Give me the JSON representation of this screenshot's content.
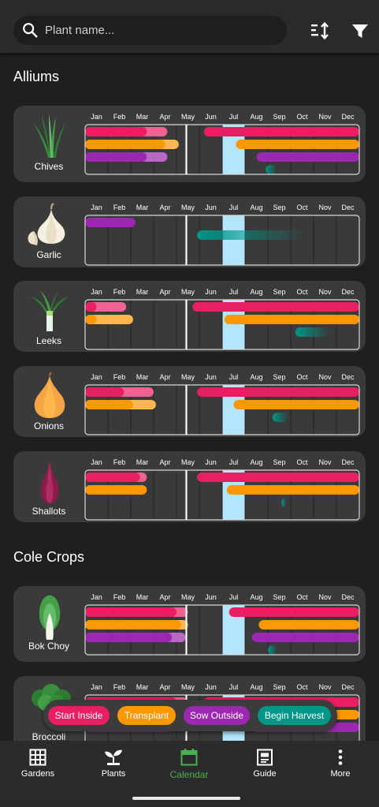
{
  "search": {
    "placeholder": "Plant name...",
    "icon": "search-icon"
  },
  "toolbar": {
    "sort_icon": "sort-icon",
    "filter_icon": "filter-icon"
  },
  "months": [
    "Jan",
    "Feb",
    "Mar",
    "Apr",
    "May",
    "Jun",
    "Jul",
    "Aug",
    "Sep",
    "Oct",
    "Nov",
    "Dec"
  ],
  "colors": {
    "start_inside": "#e91e63",
    "start_inside_light": "#f06292",
    "transplant": "#ff9800",
    "transplant_light": "#ffb74d",
    "sow_outside": "#9c27b0",
    "sow_outside_light": "#ba68c8",
    "harvest": "#009688",
    "highlight": "#b3e5fc",
    "card": "#3a3a3a"
  },
  "sections": [
    {
      "title": "Alliums",
      "plants": [
        {
          "name": "Chives",
          "icon": "chives-icon",
          "bars": [
            {
              "type": "start_inside",
              "start": 0,
              "end": 2.7,
              "light_end": 3.6
            },
            {
              "type": "start_inside",
              "start": 5.2,
              "end": 12
            },
            {
              "type": "transplant",
              "start": 0,
              "end": 3.5,
              "light_end": 4.1
            },
            {
              "type": "transplant",
              "start": 6.6,
              "end": 12
            },
            {
              "type": "sow_outside",
              "start": 0,
              "end": 2.7,
              "light_end": 3.6
            },
            {
              "type": "sow_outside",
              "start": 7.5,
              "end": 12
            },
            {
              "type": "harvest",
              "start": 7.9,
              "end": 8.4,
              "fade": true
            }
          ]
        },
        {
          "name": "Garlic",
          "icon": "garlic-icon",
          "bars": [
            {
              "type": "sow_outside",
              "start": 0,
              "end": 2.2
            },
            {
              "type": "harvest",
              "start": 4.9,
              "end": 9.6,
              "fade": true
            }
          ]
        },
        {
          "name": "Leeks",
          "icon": "leeks-icon",
          "bars": [
            {
              "type": "start_inside",
              "start": 0,
              "end": 0.5,
              "light_end": 1.8
            },
            {
              "type": "start_inside",
              "start": 4.7,
              "end": 12
            },
            {
              "type": "transplant",
              "start": 0,
              "end": 0.5,
              "light_end": 2.1
            },
            {
              "type": "transplant",
              "start": 6.1,
              "end": 12
            },
            {
              "type": "harvest",
              "start": 9.2,
              "end": 10.7,
              "fade": true
            }
          ]
        },
        {
          "name": "Onions",
          "icon": "onions-icon",
          "bars": [
            {
              "type": "start_inside",
              "start": 0,
              "end": 1.7,
              "light_end": 3.0
            },
            {
              "type": "start_inside",
              "start": 4.9,
              "end": 12
            },
            {
              "type": "transplant",
              "start": 0,
              "end": 2.1,
              "light_end": 3.1
            },
            {
              "type": "transplant",
              "start": 6.5,
              "end": 12
            },
            {
              "type": "harvest",
              "start": 8.2,
              "end": 8.9,
              "fade": true
            }
          ]
        },
        {
          "name": "Shallots",
          "icon": "shallots-icon",
          "bars": [
            {
              "type": "start_inside",
              "start": 0,
              "end": 2.4,
              "light_end": 2.7
            },
            {
              "type": "start_inside",
              "start": 4.9,
              "end": 12
            },
            {
              "type": "transplant",
              "start": 0,
              "end": 2.7
            },
            {
              "type": "transplant",
              "start": 6.2,
              "end": 12
            },
            {
              "type": "harvest",
              "start": 8.6,
              "end": 8.8,
              "fade": true
            }
          ]
        }
      ]
    },
    {
      "title": "Cole Crops",
      "plants": [
        {
          "name": "Bok Choy",
          "icon": "bok-choy-icon",
          "bars": [
            {
              "type": "start_inside",
              "start": 0,
              "end": 4.0,
              "light_end": 4.5
            },
            {
              "type": "start_inside",
              "start": 6.3,
              "end": 12
            },
            {
              "type": "transplant",
              "start": 0,
              "end": 4.2,
              "light_end": 4.5
            },
            {
              "type": "transplant",
              "start": 7.6,
              "end": 12
            },
            {
              "type": "sow_outside",
              "start": 0,
              "end": 3.8,
              "light_end": 4.4
            },
            {
              "type": "sow_outside",
              "start": 7.3,
              "end": 12
            },
            {
              "type": "harvest",
              "start": 8.0,
              "end": 8.4,
              "fade": true
            }
          ]
        },
        {
          "name": "Broccoli",
          "icon": "broccoli-icon",
          "bars": [
            {
              "type": "start_inside",
              "start": 0,
              "end": 4.0,
              "light_end": 4.5
            },
            {
              "type": "start_inside",
              "start": 5.2,
              "end": 12
            },
            {
              "type": "transplant",
              "start": 0,
              "end": 4.2
            },
            {
              "type": "transplant",
              "start": 6.6,
              "end": 12
            },
            {
              "type": "sow_outside",
              "start": 0,
              "end": 3.8
            },
            {
              "type": "sow_outside",
              "start": 7.3,
              "end": 12
            }
          ]
        }
      ]
    }
  ],
  "legend": [
    {
      "label": "Start Inside",
      "color": "#e91e63"
    },
    {
      "label": "Transplant",
      "color": "#ff9800"
    },
    {
      "label": "Sow Outside",
      "color": "#9c27b0"
    },
    {
      "label": "Begin Harvest",
      "color": "#009688"
    }
  ],
  "nav": [
    {
      "label": "Gardens",
      "icon": "grid-icon",
      "active": false
    },
    {
      "label": "Plants",
      "icon": "sprout-icon",
      "active": false
    },
    {
      "label": "Calendar",
      "icon": "calendar-icon",
      "active": true
    },
    {
      "label": "Guide",
      "icon": "guide-icon",
      "active": false
    },
    {
      "label": "More",
      "icon": "more-vertical-icon",
      "active": false
    }
  ]
}
